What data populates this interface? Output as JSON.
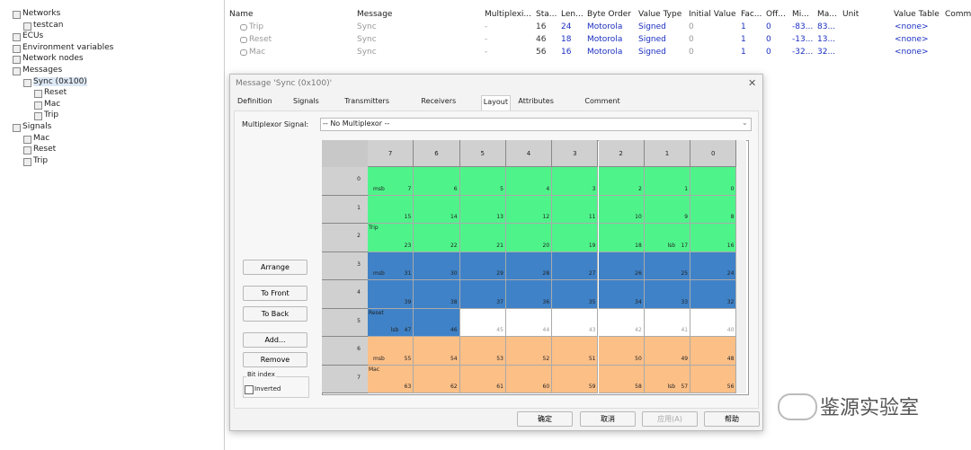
{
  "tree": [
    {
      "label": "Networks",
      "level": 0
    },
    {
      "label": "testcan",
      "level": 1
    },
    {
      "label": "ECUs",
      "level": 0
    },
    {
      "label": "Environment variables",
      "level": 0
    },
    {
      "label": "Network nodes",
      "level": 0
    },
    {
      "label": "Messages",
      "level": 0
    },
    {
      "label": "Sync (0x100)",
      "level": 1
    },
    {
      "label": "Reset",
      "level": 2
    },
    {
      "label": "Mac",
      "level": 2
    },
    {
      "label": "Trip",
      "level": 2
    },
    {
      "label": "Signals",
      "level": 0
    },
    {
      "label": "Mac",
      "level": 1
    },
    {
      "label": "Reset",
      "level": 1
    },
    {
      "label": "Trip",
      "level": 1
    }
  ],
  "table": {
    "headers": [
      "Name",
      "Message",
      "Multiplexi...",
      "Sta...",
      "Len...",
      "Byte Order",
      "Value Type",
      "Initial Value",
      "Fac...",
      "Off...",
      "Mi...",
      "Ma...",
      "Unit",
      "Value Table",
      "Comm"
    ],
    "rows": [
      [
        "Trip",
        "Sync",
        "-",
        "16",
        "24",
        "Motorola",
        "Signed",
        "0",
        "1",
        "0",
        "-83...",
        "83...",
        "<none>"
      ],
      [
        "Reset",
        "Sync",
        "-",
        "46",
        "18",
        "Motorola",
        "Signed",
        "0",
        "1",
        "0",
        "-13...",
        "13...",
        "<none>"
      ],
      [
        "Mac",
        "Sync",
        "-",
        "56",
        "16",
        "Motorola",
        "Signed",
        "0",
        "1",
        "0",
        "-32...",
        "32...",
        "<none>"
      ]
    ]
  },
  "dialog": {
    "title": "Message 'Sync (0x100)'",
    "tabs": [
      "Definition",
      "Signals",
      "Transmitters",
      "Receivers",
      "Layout",
      "Attributes",
      "Comment"
    ],
    "mux_label": "Multiplexor Signal:",
    "mux_value": "-- No Multiplexor --",
    "side_buttons": [
      "Arrange",
      "To Front",
      "To Back",
      "Add...",
      "Remove"
    ],
    "group_label": "Bit index",
    "checkbox": "Inverted",
    "bottom_buttons": [
      "确定",
      "取消",
      "应用(A)",
      "帮助"
    ],
    "grid": {
      "columns": [
        7,
        6,
        5,
        4,
        3,
        2,
        1,
        0
      ],
      "rows": [
        {
          "label": "0",
          "fills": [
            "#4ef48a",
            "#4ef48a",
            "#4ef48a",
            "#4ef48a",
            "#4ef48a",
            "#4ef48a",
            "#4ef48a",
            "#4ef48a"
          ],
          "cells": [
            {
              "bit": 7,
              "tag": "msb"
            },
            {
              "bit": 6
            },
            {
              "bit": 5
            },
            {
              "bit": 4
            },
            {
              "bit": 3
            },
            {
              "bit": 2
            },
            {
              "bit": 1
            },
            {
              "bit": 0
            }
          ]
        },
        {
          "label": "1",
          "fills": [
            "#4ef48a",
            "#4ef48a",
            "#4ef48a",
            "#4ef48a",
            "#4ef48a",
            "#4ef48a",
            "#4ef48a",
            "#4ef48a"
          ],
          "cells": [
            {
              "bit": 15
            },
            {
              "bit": 14
            },
            {
              "bit": 13
            },
            {
              "bit": 12
            },
            {
              "bit": 11
            },
            {
              "bit": 10
            },
            {
              "bit": 9
            },
            {
              "bit": 8
            }
          ]
        },
        {
          "label": "2",
          "fills": [
            "#4ef48a",
            "#4ef48a",
            "#4ef48a",
            "#4ef48a",
            "#4ef48a",
            "#4ef48a",
            "#4ef48a",
            "#4ef48a"
          ],
          "cells": [
            {
              "bit": 23,
              "name": "Trip"
            },
            {
              "bit": 22
            },
            {
              "bit": 21
            },
            {
              "bit": 20
            },
            {
              "bit": 19
            },
            {
              "bit": 18
            },
            {
              "bit": 17,
              "tag": "lsb"
            },
            {
              "bit": 16
            }
          ]
        },
        {
          "label": "3",
          "fills": [
            "#3f82c8",
            "#3f82c8",
            "#3f82c8",
            "#3f82c8",
            "#3f82c8",
            "#3f82c8",
            "#3f82c8",
            "#3f82c8"
          ],
          "cells": [
            {
              "bit": 31,
              "tag": "msb"
            },
            {
              "bit": 30
            },
            {
              "bit": 29
            },
            {
              "bit": 28
            },
            {
              "bit": 27
            },
            {
              "bit": 26
            },
            {
              "bit": 25
            },
            {
              "bit": 24
            }
          ]
        },
        {
          "label": "4",
          "fills": [
            "#3f82c8",
            "#3f82c8",
            "#3f82c8",
            "#3f82c8",
            "#3f82c8",
            "#3f82c8",
            "#3f82c8",
            "#3f82c8"
          ],
          "cells": [
            {
              "bit": 39
            },
            {
              "bit": 38
            },
            {
              "bit": 37
            },
            {
              "bit": 36
            },
            {
              "bit": 35
            },
            {
              "bit": 34
            },
            {
              "bit": 33
            },
            {
              "bit": 32
            }
          ]
        },
        {
          "label": "5",
          "fills": [
            "#3f82c8",
            "#3f82c8",
            "#ffffff",
            "#ffffff",
            "#ffffff",
            "#ffffff",
            "#ffffff",
            "#ffffff"
          ],
          "cells": [
            {
              "bit": 47,
              "name": "Reset",
              "tag": "lsb"
            },
            {
              "bit": 46
            },
            {
              "bit": 45
            },
            {
              "bit": 44
            },
            {
              "bit": 43
            },
            {
              "bit": 42
            },
            {
              "bit": 41
            },
            {
              "bit": 40
            }
          ]
        },
        {
          "label": "6",
          "fills": [
            "#fcbf86",
            "#fcbf86",
            "#fcbf86",
            "#fcbf86",
            "#fcbf86",
            "#fcbf86",
            "#fcbf86",
            "#fcbf86"
          ],
          "cells": [
            {
              "bit": 55,
              "tag": "msb"
            },
            {
              "bit": 54
            },
            {
              "bit": 53
            },
            {
              "bit": 52
            },
            {
              "bit": 51
            },
            {
              "bit": 50
            },
            {
              "bit": 49
            },
            {
              "bit": 48
            }
          ]
        },
        {
          "label": "7",
          "fills": [
            "#fcbf86",
            "#fcbf86",
            "#fcbf86",
            "#fcbf86",
            "#fcbf86",
            "#fcbf86",
            "#fcbf86",
            "#fcbf86"
          ],
          "cells": [
            {
              "bit": 63,
              "name": "Mac"
            },
            {
              "bit": 62
            },
            {
              "bit": 61
            },
            {
              "bit": 60
            },
            {
              "bit": 59
            },
            {
              "bit": 58
            },
            {
              "bit": 57,
              "tag": "lsb"
            },
            {
              "bit": 56
            }
          ]
        }
      ]
    }
  },
  "watermark": "鉴源实验室"
}
